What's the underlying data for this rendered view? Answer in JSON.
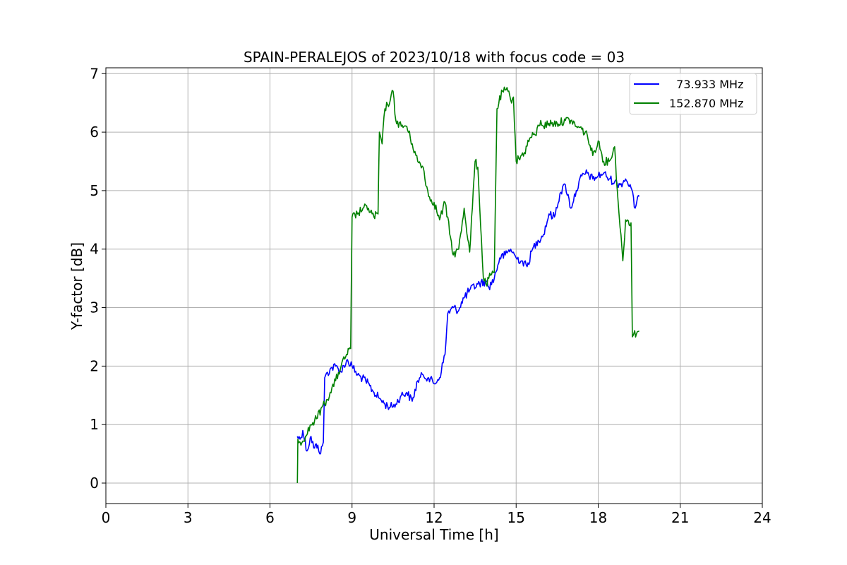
{
  "chart_data": {
    "type": "line",
    "title": "SPAIN-PERALEJOS of 2023/10/18 with focus code = 03",
    "xlabel": "Universal Time [h]",
    "ylabel": "Y-factor [dB]",
    "xlim": [
      0,
      24
    ],
    "ylim": [
      -0.35,
      7.1
    ],
    "xticks": [
      0,
      3,
      6,
      9,
      12,
      15,
      18,
      21,
      24
    ],
    "yticks": [
      0,
      1,
      2,
      3,
      4,
      5,
      6,
      7
    ],
    "grid": true,
    "legend_position": "top-right",
    "series": [
      {
        "name": "  73.933 MHz",
        "color": "#0000ff",
        "x": [
          7.0,
          7.1,
          7.2,
          7.35,
          7.5,
          7.6,
          7.75,
          7.85,
          7.95,
          8.0,
          8.2,
          8.4,
          8.6,
          8.8,
          9.0,
          9.2,
          9.5,
          9.8,
          10.0,
          10.2,
          10.4,
          10.6,
          10.8,
          11.0,
          11.2,
          11.4,
          11.6,
          11.8,
          12.0,
          12.2,
          12.4,
          12.5,
          12.7,
          12.9,
          13.0,
          13.3,
          13.6,
          13.9,
          14.0,
          14.2,
          14.4,
          14.6,
          14.8,
          15.0,
          15.2,
          15.4,
          15.6,
          15.8,
          16.0,
          16.2,
          16.4,
          16.6,
          16.8,
          17.0,
          17.2,
          17.4,
          17.6,
          17.8,
          18.0,
          18.2,
          18.4,
          18.6,
          18.8,
          19.0,
          19.2,
          19.35,
          19.5
        ],
        "y": [
          0.8,
          0.75,
          0.9,
          0.55,
          0.8,
          0.6,
          0.65,
          0.5,
          0.7,
          1.8,
          1.95,
          2.0,
          1.9,
          2.1,
          2.0,
          1.85,
          1.75,
          1.55,
          1.45,
          1.35,
          1.3,
          1.35,
          1.5,
          1.55,
          1.4,
          1.75,
          1.85,
          1.8,
          1.7,
          1.8,
          2.2,
          2.9,
          3.0,
          2.95,
          3.1,
          3.3,
          3.4,
          3.45,
          3.35,
          3.5,
          3.85,
          3.9,
          4.0,
          3.85,
          3.8,
          3.7,
          4.0,
          4.15,
          4.25,
          4.6,
          4.55,
          4.95,
          5.1,
          4.7,
          5.0,
          5.25,
          5.3,
          5.2,
          5.25,
          5.3,
          5.2,
          5.15,
          5.1,
          5.2,
          5.05,
          4.7,
          4.9
        ]
      },
      {
        "name": "152.870 MHz",
        "color": "#008000",
        "x": [
          7.0,
          7.02,
          7.1,
          7.3,
          7.5,
          7.7,
          7.9,
          8.0,
          8.2,
          8.4,
          8.6,
          8.8,
          8.95,
          9.0,
          9.2,
          9.4,
          9.6,
          9.8,
          9.95,
          10.0,
          10.1,
          10.2,
          10.4,
          10.5,
          10.6,
          10.8,
          11.0,
          11.2,
          11.4,
          11.6,
          11.8,
          12.0,
          12.2,
          12.4,
          12.6,
          12.7,
          12.9,
          13.1,
          13.3,
          13.5,
          13.6,
          13.8,
          13.9,
          14.0,
          14.2,
          14.3,
          14.5,
          14.7,
          14.8,
          14.9,
          15.0,
          15.1,
          15.3,
          15.5,
          15.7,
          15.9,
          16.0,
          16.2,
          16.5,
          16.8,
          17.0,
          17.2,
          17.4,
          17.6,
          17.8,
          18.0,
          18.2,
          18.4,
          18.6,
          18.7,
          18.9,
          19.0,
          19.2,
          19.25,
          19.3,
          19.5
        ],
        "y": [
          0.0,
          0.75,
          0.7,
          0.8,
          1.0,
          1.1,
          1.3,
          1.35,
          1.55,
          1.75,
          2.0,
          2.2,
          2.3,
          4.55,
          4.6,
          4.7,
          4.7,
          4.55,
          4.6,
          6.0,
          5.8,
          6.4,
          6.55,
          6.7,
          6.2,
          6.1,
          6.1,
          5.8,
          5.5,
          5.4,
          4.9,
          4.8,
          4.5,
          4.8,
          4.2,
          3.9,
          4.0,
          4.7,
          3.95,
          5.5,
          5.4,
          3.5,
          3.4,
          3.5,
          3.6,
          6.4,
          6.7,
          6.7,
          6.55,
          6.6,
          5.5,
          5.55,
          5.65,
          5.9,
          5.95,
          6.2,
          6.1,
          6.15,
          6.15,
          6.2,
          6.2,
          6.1,
          6.05,
          5.95,
          5.6,
          5.85,
          5.5,
          5.5,
          5.75,
          5.0,
          3.8,
          4.5,
          4.45,
          2.5,
          2.55,
          2.6
        ]
      }
    ]
  }
}
